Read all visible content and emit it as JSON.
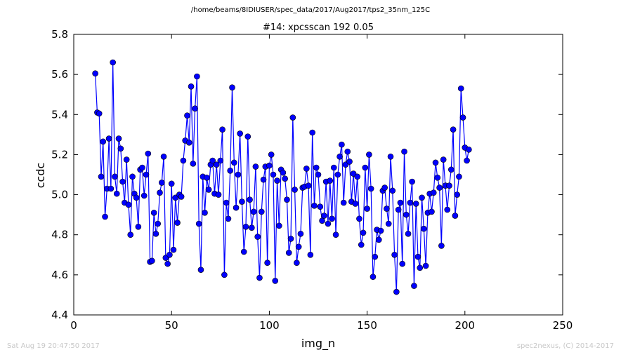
{
  "header": {
    "file_path": "/home/beams/8IDIUSER/spec_data/2017/Aug2017/tps2_35nm_125C"
  },
  "footer": {
    "timestamp": "Sat Aug 19 20:47:50 2017",
    "credit": "spec2nexus, (C) 2014-2017"
  },
  "colors": {
    "series": "#0000ff",
    "marker_edge": "#000000",
    "footer_text": "#c8c8c8"
  },
  "chart_data": {
    "type": "line",
    "title": "#14: xpcsscan 192 0.05",
    "xlabel": "img_n",
    "ylabel": "ccdc",
    "xlim": [
      0,
      250
    ],
    "ylim": [
      4.4,
      5.8
    ],
    "xticks": [
      0,
      50,
      100,
      150,
      200,
      250
    ],
    "yticks": [
      4.4,
      4.6,
      4.8,
      5.0,
      5.2,
      5.4,
      5.6,
      5.8
    ],
    "xtick_labels": [
      "0",
      "50",
      "100",
      "150",
      "200",
      "250"
    ],
    "ytick_labels": [
      "4.4",
      "4.6",
      "4.8",
      "5.0",
      "5.2",
      "5.4",
      "5.6",
      "5.8"
    ],
    "grid": false,
    "legend": false,
    "marker": "circle",
    "series": [
      {
        "x_start": 11,
        "x_step": 1,
        "values": [
          5.605,
          5.41,
          5.405,
          5.09,
          5.265,
          4.89,
          5.03,
          5.28,
          5.03,
          5.66,
          5.09,
          5.005,
          5.28,
          5.23,
          5.065,
          4.96,
          5.175,
          4.95,
          4.8,
          5.09,
          5.005,
          4.985,
          4.84,
          5.125,
          5.135,
          4.995,
          5.1,
          5.205,
          4.665,
          4.67,
          4.91,
          4.805,
          4.855,
          5.01,
          5.06,
          5.19,
          4.685,
          4.655,
          4.7,
          5.055,
          4.725,
          4.985,
          4.86,
          5.0,
          4.99,
          5.17,
          5.27,
          5.395,
          5.26,
          5.54,
          5.155,
          5.43,
          5.59,
          4.855,
          4.625,
          5.09,
          4.91,
          5.085,
          5.025,
          5.15,
          5.17,
          5.005,
          5.15,
          5.0,
          5.17,
          5.325,
          4.6,
          4.96,
          4.88,
          5.12,
          5.535,
          5.16,
          4.935,
          5.1,
          5.305,
          4.965,
          4.715,
          4.84,
          5.29,
          4.975,
          4.835,
          4.915,
          5.14,
          4.79,
          4.585,
          4.915,
          5.075,
          5.14,
          4.66,
          5.145,
          5.2,
          5.1,
          4.57,
          5.07,
          4.845,
          5.125,
          5.11,
          5.08,
          4.975,
          4.71,
          4.78,
          5.385,
          5.025,
          4.66,
          4.74,
          4.805,
          5.035,
          5.04,
          5.13,
          5.045,
          4.7,
          5.31,
          4.945,
          5.135,
          5.1,
          4.94,
          4.87,
          4.895,
          5.065,
          4.855,
          5.07,
          4.88,
          5.135,
          4.8,
          5.1,
          5.19,
          5.25,
          4.96,
          5.15,
          5.215,
          5.165,
          4.965,
          5.105,
          4.955,
          5.09,
          4.88,
          4.75,
          4.81,
          5.135,
          4.93,
          5.2,
          5.03,
          4.59,
          4.69,
          4.825,
          4.775,
          4.82,
          5.02,
          5.035,
          4.93,
          4.855,
          5.19,
          5.02,
          4.7,
          4.515,
          4.925,
          4.96,
          4.655,
          5.215,
          4.9,
          4.805,
          4.96,
          5.065,
          4.545,
          4.955,
          4.69,
          4.635,
          4.985,
          4.83,
          4.645,
          4.91,
          5.005,
          4.915,
          5.01,
          5.16,
          5.085,
          5.035,
          4.745,
          5.175,
          5.045,
          4.925,
          5.045,
          5.125,
          5.325,
          4.895,
          5.0,
          5.09,
          5.53,
          5.385,
          5.235,
          5.17,
          5.225
        ]
      }
    ]
  }
}
